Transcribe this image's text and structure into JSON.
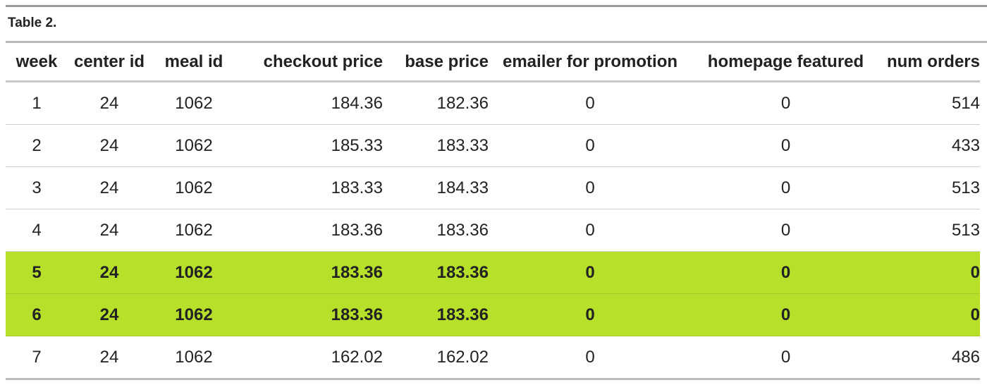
{
  "caption": "Table 2.",
  "columns": [
    "week",
    "center id",
    "meal id",
    "checkout price",
    "base price",
    "emailer for promotion",
    "homepage featured",
    "num orders"
  ],
  "rows": [
    {
      "highlight": false,
      "cells": [
        "1",
        "24",
        "1062",
        "184.36",
        "182.36",
        "0",
        "0",
        "514"
      ]
    },
    {
      "highlight": false,
      "cells": [
        "2",
        "24",
        "1062",
        "185.33",
        "183.33",
        "0",
        "0",
        "433"
      ]
    },
    {
      "highlight": false,
      "cells": [
        "3",
        "24",
        "1062",
        "183.33",
        "184.33",
        "0",
        "0",
        "513"
      ]
    },
    {
      "highlight": false,
      "cells": [
        "4",
        "24",
        "1062",
        "183.36",
        "183.36",
        "0",
        "0",
        "513"
      ]
    },
    {
      "highlight": true,
      "cells": [
        "5",
        "24",
        "1062",
        "183.36",
        "183.36",
        "0",
        "0",
        "0"
      ]
    },
    {
      "highlight": true,
      "cells": [
        "6",
        "24",
        "1062",
        "183.36",
        "183.36",
        "0",
        "0",
        "0"
      ]
    },
    {
      "highlight": false,
      "cells": [
        "7",
        "24",
        "1062",
        "162.02",
        "162.02",
        "0",
        "0",
        "486"
      ]
    }
  ],
  "colors": {
    "highlight": "#b7e02a"
  }
}
